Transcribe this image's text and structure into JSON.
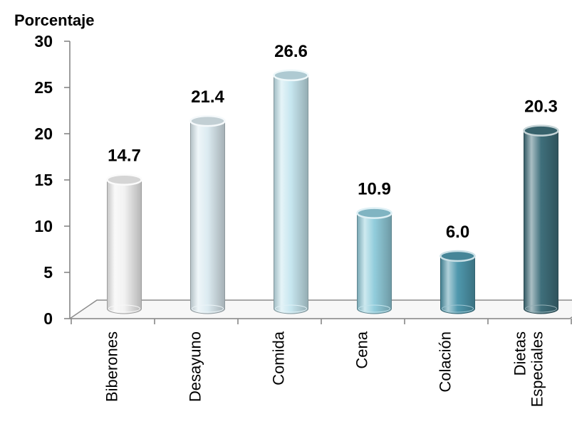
{
  "chart_data": {
    "type": "bar",
    "ylabel": "Porcentaje",
    "categories": [
      "Biberones",
      "Desayuno",
      "Comida",
      "Cena",
      "Colación",
      "Dietas Especiales"
    ],
    "category_lines": [
      [
        "Biberones"
      ],
      [
        "Desayuno"
      ],
      [
        "Comida"
      ],
      [
        "Cena"
      ],
      [
        "Colación"
      ],
      [
        "Dietas",
        "Especiales"
      ]
    ],
    "values": [
      14.7,
      21.4,
      26.6,
      10.9,
      6.0,
      20.3
    ],
    "value_labels": [
      "14.7",
      "21.4",
      "26.6",
      "10.9",
      "6.0",
      "20.3"
    ],
    "yticks": [
      "0",
      "5",
      "10",
      "15",
      "20",
      "25",
      "30"
    ],
    "ylim": [
      0,
      30
    ],
    "colors": [
      "#f2f2f2",
      "#dcebf1",
      "#c6e6ef",
      "#92cddc",
      "#4f98ad",
      "#3f6f7b"
    ],
    "style": "3d-cylinder",
    "grid": false,
    "legend": "none"
  }
}
